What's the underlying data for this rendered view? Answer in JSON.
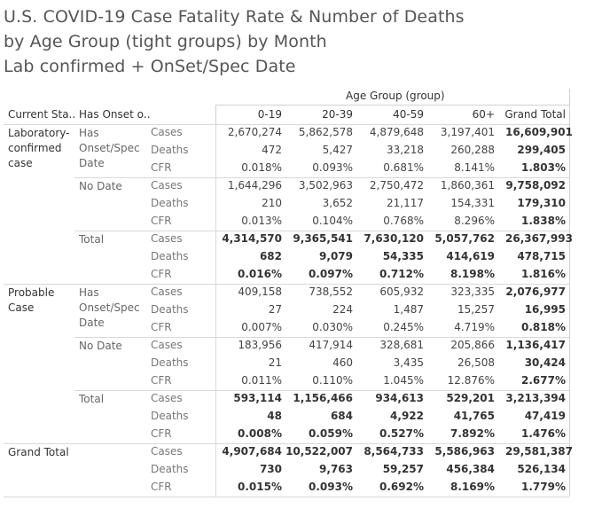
{
  "title": {
    "line1": "U.S. COVID-19 Case Fatality Rate & Number of Deaths",
    "line2": "by Age Group (tight groups) by Month",
    "line3": "Lab confirmed + OnSet/Spec Date"
  },
  "column_group_label": "Age Group (group)",
  "headers": {
    "current_status": "Current Sta..",
    "has_onset": "Has Onset o..",
    "cols": [
      "0-19",
      "20-39",
      "40-59",
      "60+",
      "Grand Total"
    ]
  },
  "measures": [
    "Cases",
    "Deaths",
    "CFR"
  ],
  "groups": [
    {
      "label": "Laboratory-confirmed case",
      "label_lines": [
        "Laboratory-",
        "confirmed",
        "case"
      ],
      "subgroups": [
        {
          "label_lines": [
            "Has",
            "Onset/Spec",
            "Date"
          ],
          "total": false,
          "rows": [
            [
              "2,670,274",
              "5,862,578",
              "4,879,648",
              "3,197,401",
              "16,609,901"
            ],
            [
              "472",
              "5,427",
              "33,218",
              "260,288",
              "299,405"
            ],
            [
              "0.018%",
              "0.093%",
              "0.681%",
              "8.141%",
              "1.803%"
            ]
          ]
        },
        {
          "label_lines": [
            "No Date"
          ],
          "total": false,
          "rows": [
            [
              "1,644,296",
              "3,502,963",
              "2,750,472",
              "1,860,361",
              "9,758,092"
            ],
            [
              "210",
              "3,652",
              "21,117",
              "154,331",
              "179,310"
            ],
            [
              "0.013%",
              "0.104%",
              "0.768%",
              "8.296%",
              "1.838%"
            ]
          ]
        },
        {
          "label_lines": [
            "Total"
          ],
          "total": true,
          "rows": [
            [
              "4,314,570",
              "9,365,541",
              "7,630,120",
              "5,057,762",
              "26,367,993"
            ],
            [
              "682",
              "9,079",
              "54,335",
              "414,619",
              "478,715"
            ],
            [
              "0.016%",
              "0.097%",
              "0.712%",
              "8.198%",
              "1.816%"
            ]
          ]
        }
      ]
    },
    {
      "label": "Probable Case",
      "label_lines": [
        "Probable",
        "Case"
      ],
      "subgroups": [
        {
          "label_lines": [
            "Has",
            "Onset/Spec",
            "Date"
          ],
          "total": false,
          "rows": [
            [
              "409,158",
              "738,552",
              "605,932",
              "323,335",
              "2,076,977"
            ],
            [
              "27",
              "224",
              "1,487",
              "15,257",
              "16,995"
            ],
            [
              "0.007%",
              "0.030%",
              "0.245%",
              "4.719%",
              "0.818%"
            ]
          ]
        },
        {
          "label_lines": [
            "No Date"
          ],
          "total": false,
          "rows": [
            [
              "183,956",
              "417,914",
              "328,681",
              "205,866",
              "1,136,417"
            ],
            [
              "21",
              "460",
              "3,435",
              "26,508",
              "30,424"
            ],
            [
              "0.011%",
              "0.110%",
              "1.045%",
              "12.876%",
              "2.677%"
            ]
          ]
        },
        {
          "label_lines": [
            "Total"
          ],
          "total": true,
          "rows": [
            [
              "593,114",
              "1,156,466",
              "934,613",
              "529,201",
              "3,213,394"
            ],
            [
              "48",
              "684",
              "4,922",
              "41,765",
              "47,419"
            ],
            [
              "0.008%",
              "0.059%",
              "0.527%",
              "7.892%",
              "1.476%"
            ]
          ]
        }
      ]
    },
    {
      "label": "Grand Total",
      "label_lines": [
        "Grand Total"
      ],
      "subgroups": [
        {
          "label_lines": [
            ""
          ],
          "total": true,
          "rows": [
            [
              "4,907,684",
              "10,522,007",
              "8,564,733",
              "5,586,963",
              "29,581,387"
            ],
            [
              "730",
              "9,763",
              "59,257",
              "456,384",
              "526,134"
            ],
            [
              "0.015%",
              "0.093%",
              "0.692%",
              "8.169%",
              "1.779%"
            ]
          ]
        }
      ]
    }
  ]
}
